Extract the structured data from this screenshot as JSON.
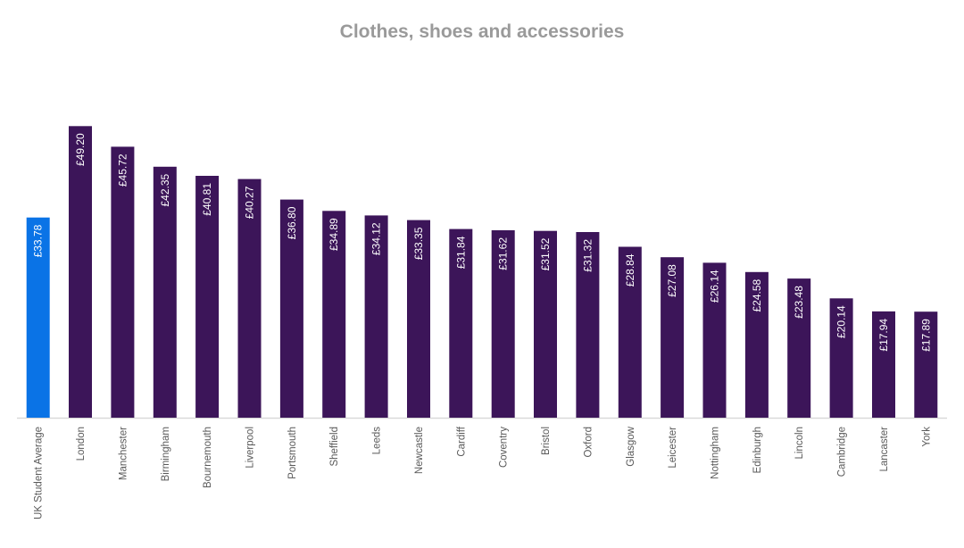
{
  "chart_data": {
    "type": "bar",
    "title": "Clothes, shoes and accessories",
    "xlabel": "",
    "ylabel": "",
    "value_prefix": "£",
    "ylim": [
      0,
      55
    ],
    "grid": false,
    "legend": "none",
    "categories": [
      "UK Student Average",
      "London",
      "Manchester",
      "Birmingham",
      "Bournemouth",
      "Liverpool",
      "Portsmouth",
      "Sheffield",
      "Leeds",
      "Newcastle",
      "Cardiff",
      "Coventry",
      "Bristol",
      "Oxford",
      "Glasgow",
      "Leicester",
      "Nottingham",
      "Edinburgh",
      "Lincoln",
      "Cambridge",
      "Lancaster",
      "York"
    ],
    "values": [
      33.78,
      49.2,
      45.72,
      42.35,
      40.81,
      40.27,
      36.8,
      34.89,
      34.12,
      33.35,
      31.84,
      31.62,
      31.52,
      31.32,
      28.84,
      27.08,
      26.14,
      24.58,
      23.48,
      20.14,
      17.94,
      17.89
    ],
    "data_labels": [
      "£33.78",
      "£49.20",
      "£45.72",
      "£42.35",
      "£40.81",
      "£40.27",
      "£36.80",
      "£34.89",
      "£34.12",
      "£33.35",
      "£31.84",
      "£31.62",
      "£31.52",
      "£31.32",
      "£28.84",
      "£27.08",
      "£26.14",
      "£24.58",
      "£23.48",
      "£20.14",
      "£17.94",
      "£17.89"
    ],
    "colors": {
      "highlight": "#0a73e6",
      "bar": "#3c1559",
      "axis": "#d9d9d9",
      "title": "#9a9a9a",
      "tick": "#595959"
    },
    "highlight_index": 0
  }
}
